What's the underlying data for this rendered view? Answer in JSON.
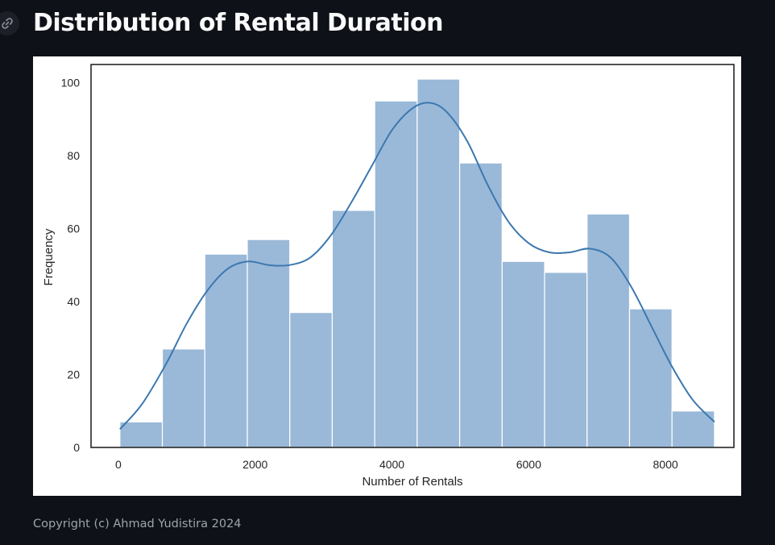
{
  "page": {
    "title": "Distribution of Rental Duration",
    "anchor_icon": "link-icon",
    "footer": "Copyright (c) Ahmad Yudistira 2024"
  },
  "colors": {
    "background": "#0e1117",
    "bar_fill": "#9ab9d8",
    "kde_line": "#3c78b0",
    "title_text": "#fafafa",
    "footer_text": "#9ea3ad"
  },
  "chart_data": {
    "type": "bar",
    "subtype": "histogram with KDE curve",
    "title": "",
    "xlabel": "Number of Rentals",
    "ylabel": "Frequency",
    "xlim": [
      -400,
      9000
    ],
    "ylim": [
      0,
      105
    ],
    "xticks": [
      0,
      2000,
      4000,
      6000,
      8000
    ],
    "yticks": [
      0,
      20,
      40,
      60,
      80,
      100
    ],
    "grid": false,
    "bins": [
      {
        "start": 22,
        "end": 643,
        "count": 7
      },
      {
        "start": 643,
        "end": 1264,
        "count": 27
      },
      {
        "start": 1264,
        "end": 1885,
        "count": 53
      },
      {
        "start": 1885,
        "end": 2506,
        "count": 57
      },
      {
        "start": 2506,
        "end": 3127,
        "count": 37
      },
      {
        "start": 3127,
        "end": 3748,
        "count": 65
      },
      {
        "start": 3748,
        "end": 4369,
        "count": 95
      },
      {
        "start": 4369,
        "end": 4990,
        "count": 101
      },
      {
        "start": 4990,
        "end": 5611,
        "count": 78
      },
      {
        "start": 5611,
        "end": 6232,
        "count": 51
      },
      {
        "start": 6232,
        "end": 6853,
        "count": 48
      },
      {
        "start": 6853,
        "end": 7474,
        "count": 64
      },
      {
        "start": 7474,
        "end": 8095,
        "count": 38
      },
      {
        "start": 8095,
        "end": 8716,
        "count": 10
      }
    ],
    "kde": {
      "x": [
        22,
        350,
        700,
        1000,
        1300,
        1600,
        1900,
        2200,
        2500,
        2800,
        3100,
        3400,
        3700,
        4000,
        4300,
        4550,
        4800,
        5100,
        5400,
        5700,
        6000,
        6300,
        6600,
        6900,
        7200,
        7500,
        7800,
        8100,
        8400,
        8716
      ],
      "y": [
        5,
        12,
        23,
        34,
        43,
        49,
        51,
        50,
        50,
        52,
        58,
        67,
        77,
        87,
        93,
        94.5,
        92,
        84,
        72,
        62,
        56,
        53.5,
        53.5,
        54.5,
        52,
        44,
        33,
        22,
        13,
        7
      ]
    }
  }
}
